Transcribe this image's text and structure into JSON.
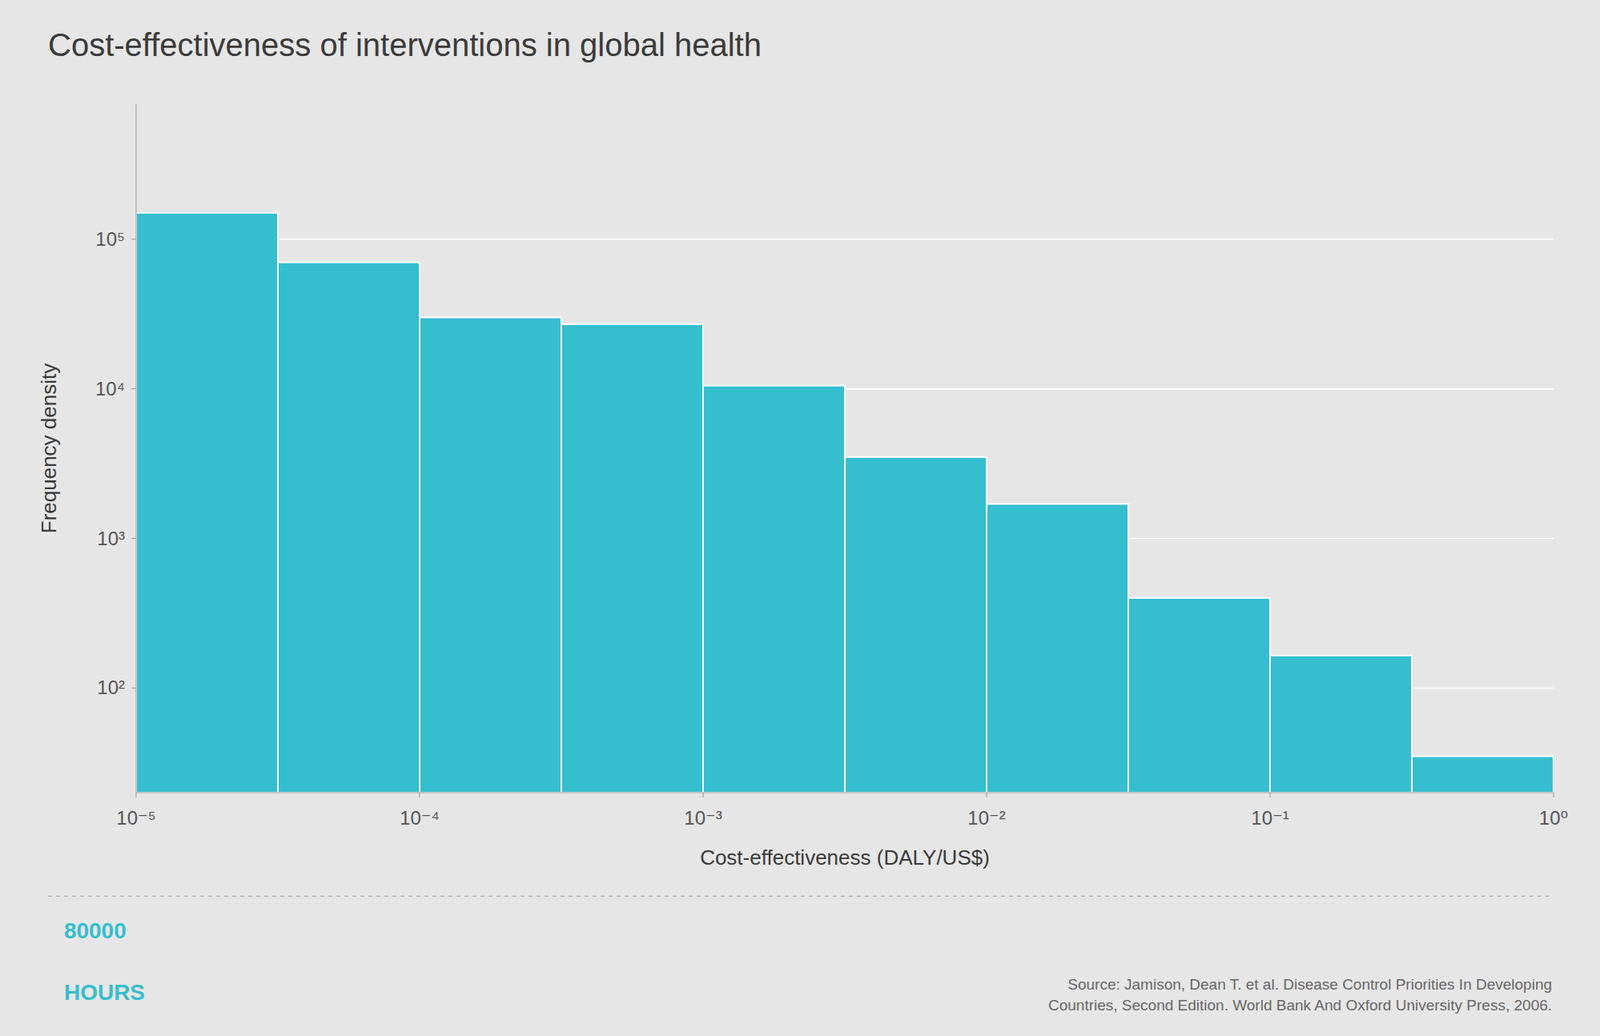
{
  "chart_data": {
    "type": "histogram",
    "title": "Cost-effectiveness of interventions in global health",
    "x_label": "Cost-effectiveness (DALY/US$)",
    "y_label": "Frequency density",
    "bins": [
      1e-05,
      3.1622776601683795e-05,
      0.0001,
      0.00031622776601683794,
      0.001,
      0.0031622776601683794,
      0.01,
      0.03162277660168379,
      0.1,
      0.31622776601683794,
      1
    ],
    "values": [
      150000,
      70000,
      30000,
      27000,
      10500,
      3500,
      1700,
      400,
      165,
      35
    ],
    "color": "#35bece",
    "log": true,
    "xlim": [
      1e-05,
      1
    ],
    "xticks": [
      {
        "value": 1e-05,
        "label": "10⁻⁵"
      },
      {
        "value": 0.0001,
        "label": "10⁻⁴"
      },
      {
        "value": 0.001,
        "label": "10⁻³"
      },
      {
        "value": 0.01,
        "label": "10⁻²"
      },
      {
        "value": 0.1,
        "label": "10⁻¹"
      },
      {
        "value": 1,
        "label": "10⁰"
      }
    ],
    "ylim": [
      20,
      800000
    ],
    "yticks": [
      {
        "value": 100,
        "label": "10²"
      },
      {
        "value": 1000,
        "label": "10³"
      },
      {
        "value": 10000,
        "label": "10⁴"
      },
      {
        "value": 100000,
        "label": "10⁵"
      }
    ],
    "grid": "y",
    "annotations": [
      "80000",
      "HOURS",
      "Source: Jamison, Dean T. et al. Disease Control Priorities In Developing\nCountries, Second Edition. World Bank And Oxford University Press, 2006."
    ]
  }
}
